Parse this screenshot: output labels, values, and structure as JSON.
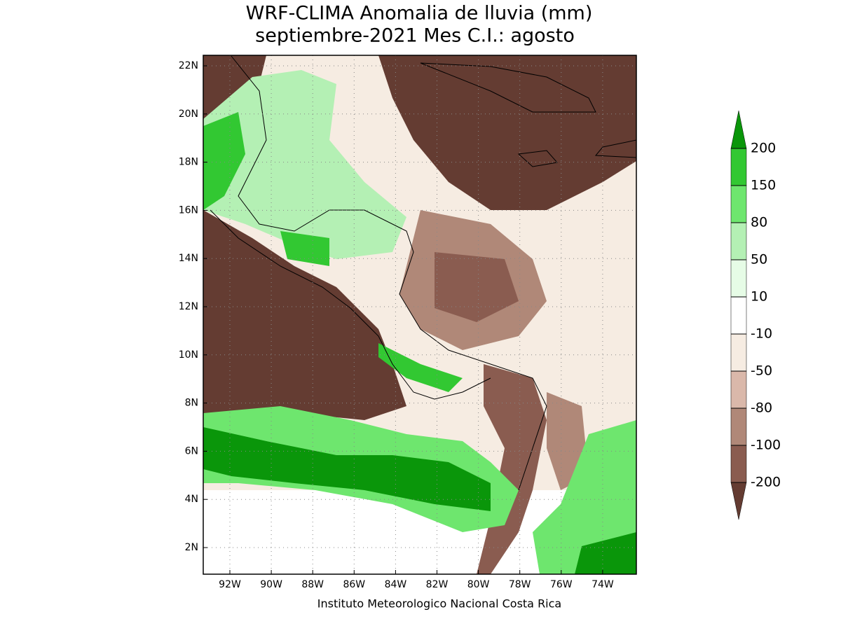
{
  "title": [
    "WRF-CLIMA Anomalia de lluvia (mm)",
    "septiembre-2021 Mes C.I.: agosto"
  ],
  "map": {
    "lat_labels": [
      "22N",
      "20N",
      "18N",
      "16N",
      "14N",
      "12N",
      "10N",
      "8N",
      "6N",
      "4N",
      "2N"
    ],
    "lon_labels": [
      "92W",
      "90W",
      "88W",
      "86W",
      "84W",
      "82W",
      "80W",
      "78W",
      "76W",
      "74W"
    ]
  },
  "legend": {
    "levels": [
      200,
      150,
      80,
      50,
      10,
      -10,
      -50,
      -80,
      -100,
      -200
    ],
    "colors": [
      "#0a960a",
      "#32c832",
      "#6ee66e",
      "#b4f0b4",
      "#e6fce6",
      "#ffffff",
      "#f6ece2",
      "#dab8aa",
      "#b08878",
      "#8a5c50",
      "#643c32"
    ]
  },
  "footer": "Instituto Meteorologico Nacional Costa Rica"
}
